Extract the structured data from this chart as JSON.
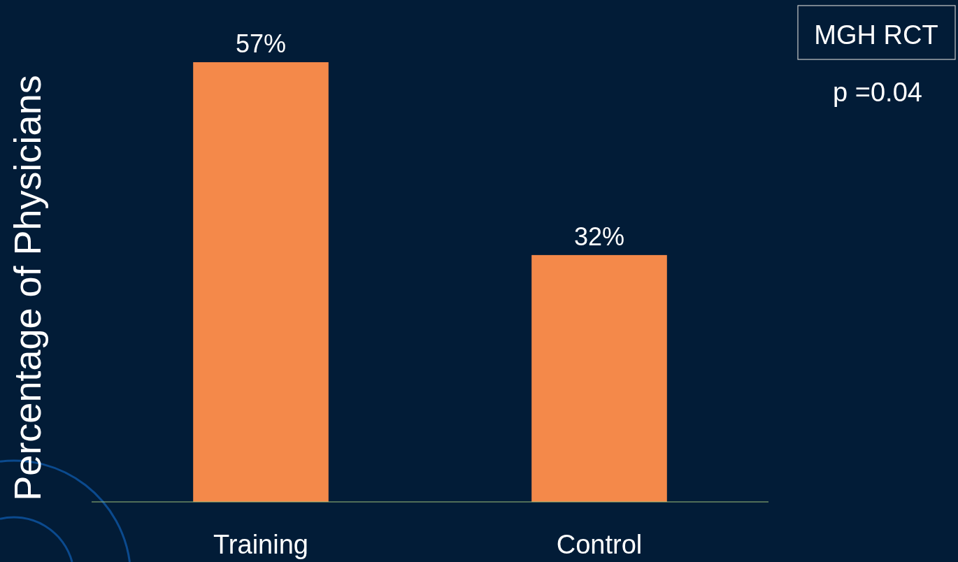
{
  "chart_data": {
    "type": "bar",
    "ylabel": "Percentage of Physicians",
    "categories": [
      "Training",
      "Control"
    ],
    "values": [
      57,
      32
    ],
    "color": "#f4894a",
    "value_labels": [
      "57%",
      "32%"
    ],
    "annotations": [
      "MGH RCT",
      "p =0.04"
    ]
  }
}
